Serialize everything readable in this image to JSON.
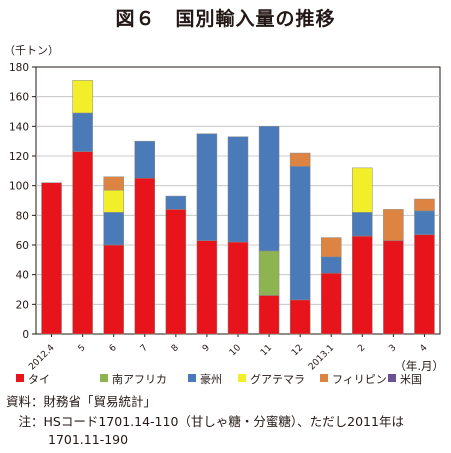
{
  "chart_data": {
    "type": "bar",
    "stacked": true,
    "title": "図６　国別輸入量の推移",
    "ylabel": "（千トン）",
    "xlabel": "（年.月）",
    "ylim": [
      0,
      180
    ],
    "yticks": [
      0,
      20,
      40,
      60,
      80,
      100,
      120,
      140,
      160,
      180
    ],
    "categories": [
      "2012.4",
      "5",
      "6",
      "7",
      "8",
      "9",
      "10",
      "11",
      "12",
      "2013.1",
      "2",
      "3",
      "4"
    ],
    "series": [
      {
        "name": "タイ",
        "color": "#e8141c",
        "values": [
          102,
          123,
          60,
          105,
          84,
          63,
          62,
          26,
          23,
          41,
          66,
          63,
          67
        ]
      },
      {
        "name": "南アフリカ",
        "color": "#8db450",
        "values": [
          0,
          0,
          0,
          0,
          0,
          0,
          0,
          30,
          0,
          0,
          0,
          0,
          0
        ]
      },
      {
        "name": "豪州",
        "color": "#4a7ab8",
        "values": [
          0,
          26,
          22,
          25,
          9,
          72,
          71,
          84,
          90,
          11,
          16,
          0,
          16
        ]
      },
      {
        "name": "グアテマラ",
        "color": "#f2ee2a",
        "values": [
          0,
          22,
          15,
          0,
          0,
          0,
          0,
          0,
          0,
          0,
          30,
          0,
          0
        ]
      },
      {
        "name": "フィリピン",
        "color": "#dd8443",
        "values": [
          0,
          0,
          9,
          0,
          0,
          0,
          0,
          0,
          9,
          13,
          0,
          21,
          8
        ]
      },
      {
        "name": "米国",
        "color": "#6a5191",
        "values": [
          0,
          0,
          0,
          0,
          0,
          0,
          0,
          0,
          0,
          0,
          0,
          0,
          0
        ]
      }
    ],
    "grid": true,
    "legend_position": "bottom"
  },
  "footnotes": {
    "source": "資料：財務省「貿易統計」",
    "note_line1": "　注：HSコード1701.14-110（甘しゃ糖・分蜜糖）、ただし2011年は",
    "note_line2": "1701.11-190"
  }
}
